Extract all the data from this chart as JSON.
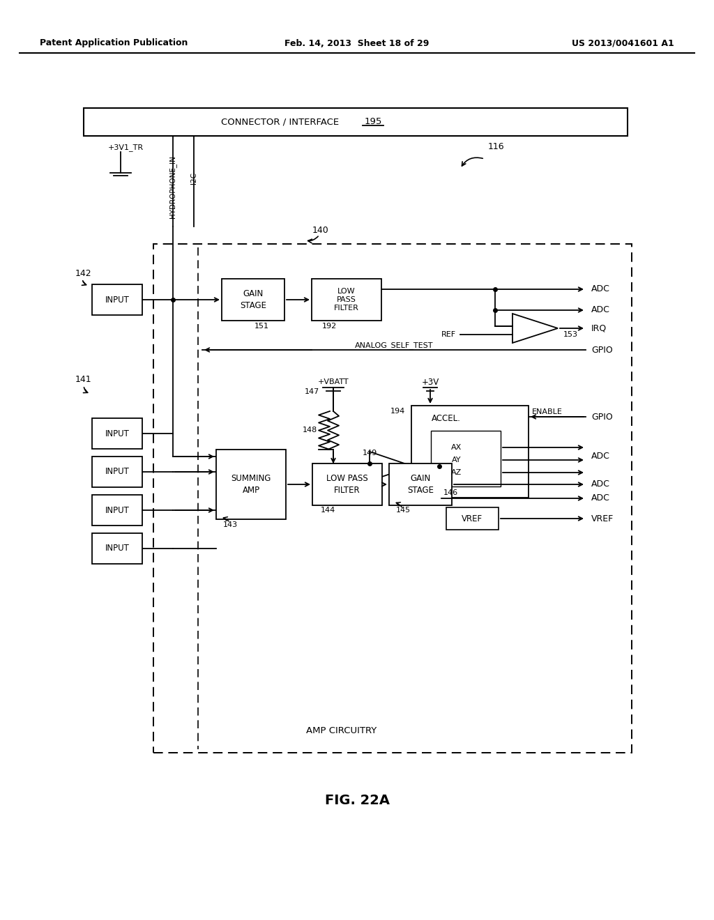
{
  "header_left": "Patent Application Publication",
  "header_mid": "Feb. 14, 2013  Sheet 18 of 29",
  "header_right": "US 2013/0041601 A1",
  "fig_caption": "FIG. 22A"
}
